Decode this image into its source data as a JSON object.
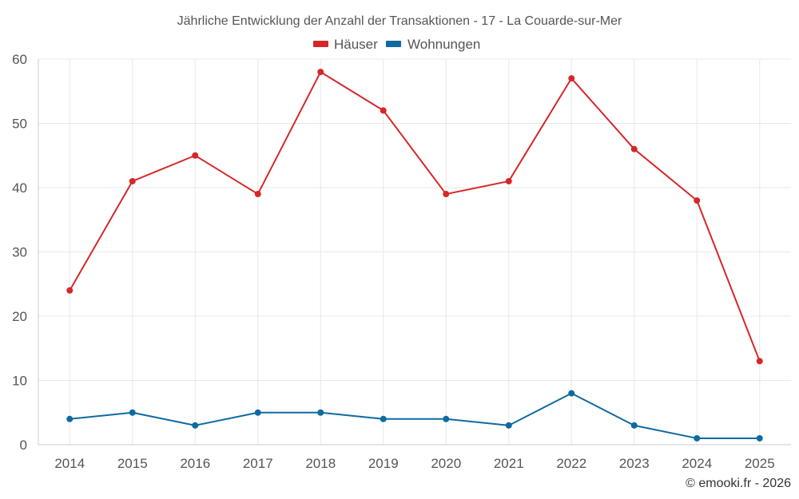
{
  "chart_data": {
    "type": "line",
    "title": "Jährliche Entwicklung der Anzahl der Transaktionen - 17 - La Couarde-sur-Mer",
    "categories": [
      "2014",
      "2015",
      "2016",
      "2017",
      "2018",
      "2019",
      "2020",
      "2021",
      "2022",
      "2023",
      "2024",
      "2025"
    ],
    "series": [
      {
        "name": "Häuser",
        "color": "#d62728",
        "values": [
          24,
          41,
          45,
          39,
          58,
          52,
          39,
          41,
          57,
          46,
          38,
          13
        ]
      },
      {
        "name": "Wohnungen",
        "color": "#0f6aa0",
        "values": [
          4,
          5,
          3,
          5,
          5,
          4,
          4,
          3,
          8,
          3,
          1,
          1
        ]
      }
    ],
    "ylim": [
      0,
      60
    ],
    "yticks": [
      0,
      10,
      20,
      30,
      40,
      50,
      60
    ],
    "xlabel": "",
    "ylabel": "",
    "grid": true,
    "legend_position": "top-center"
  },
  "credit": "© emooki.fr - 2026"
}
